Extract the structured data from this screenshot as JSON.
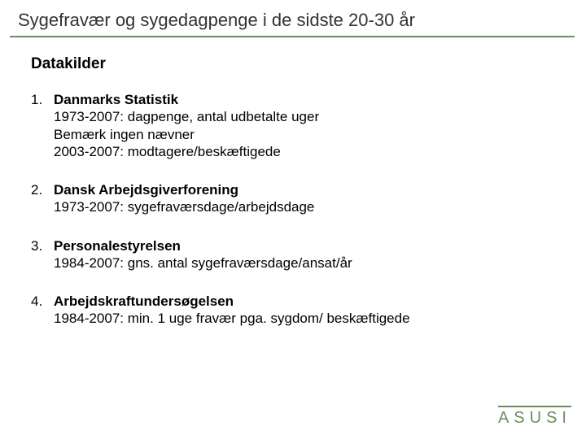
{
  "title": "Sygefravær og sygedagpenge i de sidste 20-30 år",
  "subheading": "Datakilder",
  "items": [
    {
      "title": "Danmarks Statistik",
      "lines": [
        "1973-2007: dagpenge, antal udbetalte uger",
        "Bemærk ingen nævner",
        "2003-2007: modtagere/beskæftigede"
      ]
    },
    {
      "title": "Dansk Arbejdsgiverforening",
      "lines": [
        "1973-2007: sygefraværsdage/arbejdsdage"
      ]
    },
    {
      "title": "Personalestyrelsen",
      "lines": [
        "1984-2007: gns. antal sygefraværsdage/ansat/år"
      ]
    },
    {
      "title": "Arbejdskraftundersøgelsen",
      "lines": [
        "1984-2007: min. 1 uge fravær pga. sygdom/ beskæftigede"
      ]
    }
  ],
  "logo_text": "ASUSI",
  "colors": {
    "accent": "#6b8e5a",
    "text": "#000000",
    "title_text": "#333333",
    "background": "#ffffff"
  },
  "typography": {
    "title_fontsize": 22,
    "title_family": "Comic Sans MS",
    "subheading_fontsize": 19,
    "body_fontsize": 17,
    "logo_fontsize": 20
  }
}
